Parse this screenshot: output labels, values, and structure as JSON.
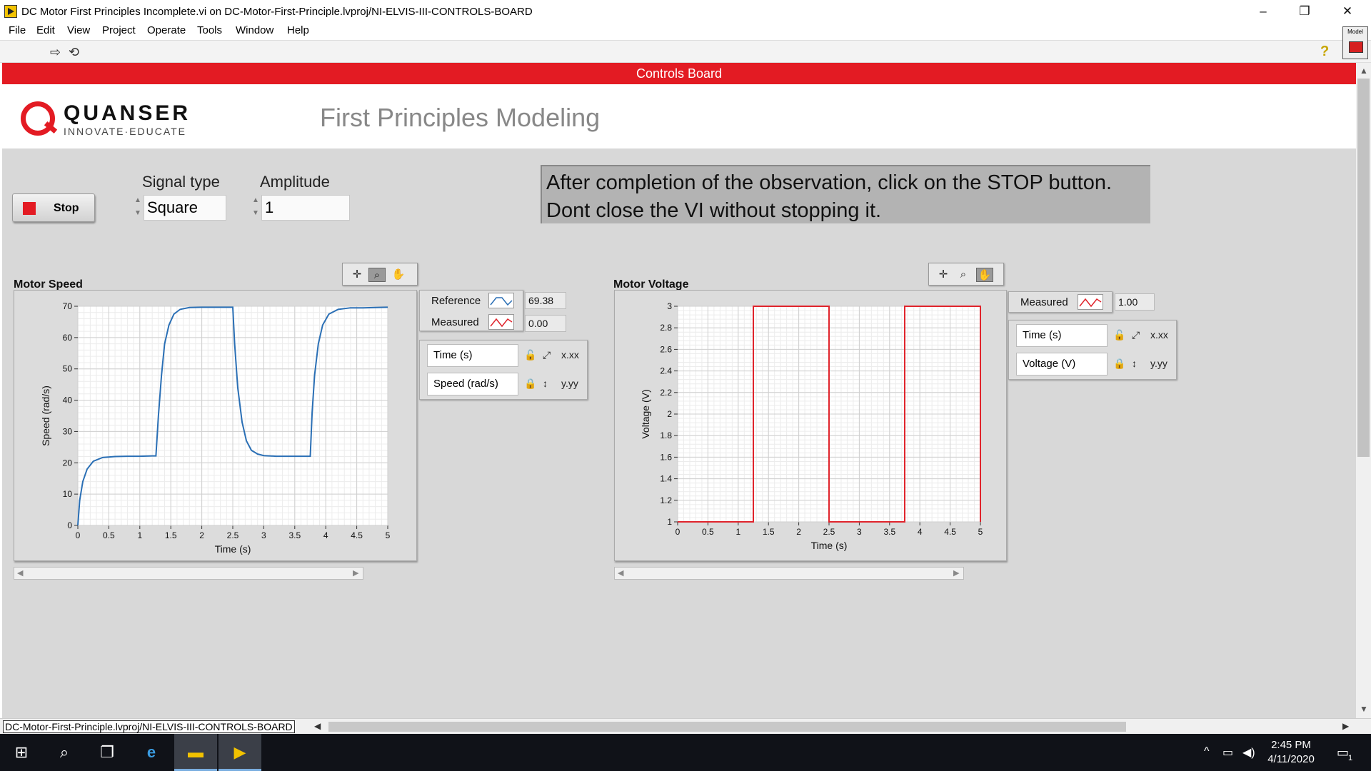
{
  "window": {
    "title": "DC Motor First Principles Incomplete.vi on DC-Motor-First-Principle.lvproj/NI-ELVIS-III-CONTROLS-BOARD",
    "minimize": "–",
    "restore": "❐",
    "close": "✕"
  },
  "menu": [
    "File",
    "Edit",
    "View",
    "Project",
    "Operate",
    "Tools",
    "Window",
    "Help"
  ],
  "toolbar": {
    "run_icon": "run-arrow-icon",
    "continuous_icon": "run-continuous-icon",
    "help": "?",
    "model_label": "Model"
  },
  "panel": {
    "banner": "Controls Board",
    "brand": "QUANSER",
    "tagline": "INNOVATE·EDUCATE",
    "title": "First Principles Modeling"
  },
  "controls": {
    "stop_label": "Stop",
    "signal_type_label": "Signal type",
    "signal_type_value": "Square",
    "amplitude_label": "Amplitude",
    "amplitude_value": "1"
  },
  "note": {
    "line1": "After completion of the observation, click on the STOP button.",
    "line2": "Dont close the VI without stopping it."
  },
  "speed_graph": {
    "title": "Motor Speed",
    "legend": [
      {
        "name": "Reference",
        "value": "69.38",
        "color": "#2a6fb5"
      },
      {
        "name": "Measured",
        "value": "0.00",
        "color": "#e0242c"
      }
    ],
    "scale_x": "Time (s)",
    "scale_y": "Speed (rad/s)"
  },
  "voltage_graph": {
    "title": "Motor Voltage",
    "legend": [
      {
        "name": "Measured",
        "value": "1.00",
        "color": "#e0242c"
      }
    ],
    "scale_x": "Time (s)",
    "scale_y": "Voltage (V)"
  },
  "chart_data": [
    {
      "type": "line",
      "title": "",
      "xlabel": "Time (s)",
      "ylabel": "Speed (rad/s)",
      "xlim": [
        0,
        5
      ],
      "ylim": [
        0,
        70
      ],
      "xticks": [
        "0",
        "0.5",
        "1",
        "1.5",
        "2",
        "2.5",
        "3",
        "3.5",
        "4",
        "4.5",
        "5"
      ],
      "yticks": [
        "0",
        "10",
        "20",
        "30",
        "40",
        "50",
        "60",
        "70"
      ],
      "grid": true,
      "series": [
        {
          "name": "Reference",
          "color": "#2a6fb5",
          "x": [
            0,
            0.03,
            0.08,
            0.15,
            0.25,
            0.4,
            0.6,
            0.8,
            1.0,
            1.2,
            1.26,
            1.3,
            1.35,
            1.4,
            1.47,
            1.55,
            1.65,
            1.8,
            2.0,
            2.2,
            2.4,
            2.5,
            2.53,
            2.58,
            2.65,
            2.72,
            2.8,
            2.9,
            3.0,
            3.2,
            3.4,
            3.75,
            3.78,
            3.82,
            3.88,
            3.95,
            4.05,
            4.2,
            4.4,
            4.6,
            4.8,
            5.0
          ],
          "y": [
            0,
            8,
            14,
            18,
            20.5,
            21.7,
            22,
            22.1,
            22.1,
            22.2,
            22.2,
            35,
            48,
            58,
            64,
            67.5,
            69,
            69.6,
            69.7,
            69.7,
            69.7,
            69.7,
            58,
            44,
            33,
            27,
            24,
            22.8,
            22.3,
            22.1,
            22.1,
            22.1,
            36,
            48,
            58,
            64,
            67.5,
            69,
            69.5,
            69.5,
            69.6,
            69.7
          ]
        }
      ]
    },
    {
      "type": "line",
      "title": "",
      "xlabel": "Time (s)",
      "ylabel": "Voltage (V)",
      "xlim": [
        0,
        5
      ],
      "ylim": [
        1,
        3
      ],
      "xticks": [
        "0",
        "0.5",
        "1",
        "1.5",
        "2",
        "2.5",
        "3",
        "3.5",
        "4",
        "4.5",
        "5"
      ],
      "yticks": [
        "1",
        "1.2",
        "1.4",
        "1.6",
        "1.8",
        "2",
        "2.2",
        "2.4",
        "2.6",
        "2.8",
        "3"
      ],
      "grid": true,
      "series": [
        {
          "name": "Measured",
          "color": "#e0242c",
          "x": [
            0,
            1.25,
            1.25,
            2.5,
            2.5,
            3.75,
            3.75,
            5.0,
            5.0
          ],
          "y": [
            1,
            1,
            3,
            3,
            1,
            1,
            3,
            3,
            1
          ]
        }
      ]
    }
  ],
  "statusbar": {
    "path": "DC-Motor-First-Principle.lvproj/NI-ELVIS-III-CONTROLS-BOARD"
  },
  "taskbar": {
    "items": [
      "windows-start-icon",
      "search-icon",
      "task-view-icon",
      "internet-explorer-icon",
      "file-explorer-icon",
      "labview-icon"
    ],
    "time": "2:45 PM",
    "date": "4/11/2020",
    "notification_count": "1"
  }
}
